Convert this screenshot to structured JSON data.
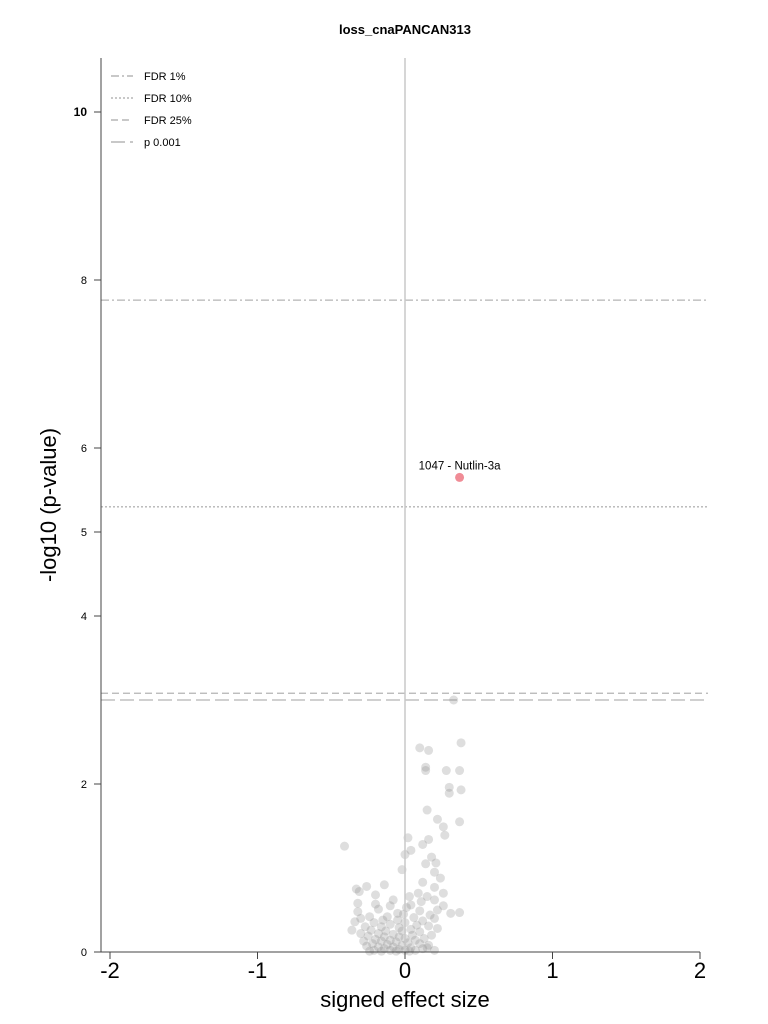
{
  "chart_data": {
    "type": "scatter",
    "title": "loss_cnaPANCAN313",
    "xlabel": "signed effect size",
    "ylabel": "-log10 (p-value)",
    "xlim": [
      -2,
      2
    ],
    "ylim": [
      0,
      10.6
    ],
    "x_ticks": [
      -2,
      -1,
      0,
      1,
      2
    ],
    "y_ticks": [
      0,
      2,
      4,
      5,
      6,
      8,
      10
    ],
    "grid": false,
    "legend_position": "top-left",
    "thresholds": [
      {
        "name": "FDR 1%",
        "y": 7.76,
        "style": "dashdot"
      },
      {
        "name": "FDR 10%",
        "y": 5.3,
        "style": "dotted"
      },
      {
        "name": "FDR 25%",
        "y": 3.08,
        "style": "dashed"
      },
      {
        "name": "p 0.001",
        "y": 3.0,
        "style": "longdash"
      }
    ],
    "highlight": {
      "label": "1047 - Nutlin-3a",
      "x": 0.37,
      "y": 5.65,
      "color": "#f08c96"
    },
    "points_color": "#888888",
    "points": [
      [
        0.33,
        3.0
      ],
      [
        0.38,
        2.49
      ],
      [
        0.1,
        2.43
      ],
      [
        0.16,
        2.4
      ],
      [
        0.14,
        2.2
      ],
      [
        0.14,
        2.16
      ],
      [
        0.28,
        2.16
      ],
      [
        0.37,
        2.16
      ],
      [
        0.3,
        1.96
      ],
      [
        0.3,
        1.89
      ],
      [
        0.38,
        1.93
      ],
      [
        0.15,
        1.69
      ],
      [
        0.22,
        1.58
      ],
      [
        0.37,
        1.55
      ],
      [
        0.26,
        1.49
      ],
      [
        0.27,
        1.39
      ],
      [
        0.02,
        1.36
      ],
      [
        0.16,
        1.34
      ],
      [
        0.12,
        1.28
      ],
      [
        -0.41,
        1.26
      ],
      [
        0.04,
        1.21
      ],
      [
        0.0,
        1.16
      ],
      [
        0.18,
        1.13
      ],
      [
        0.21,
        1.06
      ],
      [
        0.14,
        1.05
      ],
      [
        -0.02,
        0.98
      ],
      [
        0.2,
        0.95
      ],
      [
        0.24,
        0.88
      ],
      [
        0.12,
        0.83
      ],
      [
        -0.14,
        0.8
      ],
      [
        -0.26,
        0.78
      ],
      [
        0.2,
        0.77
      ],
      [
        -0.33,
        0.75
      ],
      [
        -0.31,
        0.72
      ],
      [
        0.09,
        0.7
      ],
      [
        0.26,
        0.7
      ],
      [
        -0.2,
        0.68
      ],
      [
        0.03,
        0.66
      ],
      [
        0.15,
        0.66
      ],
      [
        -0.08,
        0.62
      ],
      [
        0.2,
        0.62
      ],
      [
        0.11,
        0.6
      ],
      [
        -0.32,
        0.58
      ],
      [
        -0.2,
        0.57
      ],
      [
        0.04,
        0.56
      ],
      [
        -0.1,
        0.55
      ],
      [
        0.26,
        0.55
      ],
      [
        0.01,
        0.53
      ],
      [
        -0.18,
        0.51
      ],
      [
        0.22,
        0.5
      ],
      [
        0.1,
        0.49
      ],
      [
        -0.32,
        0.48
      ],
      [
        0.37,
        0.47
      ],
      [
        0.31,
        0.46
      ],
      [
        -0.05,
        0.46
      ],
      [
        -0.01,
        0.45
      ],
      [
        0.17,
        0.44
      ],
      [
        -0.24,
        0.42
      ],
      [
        -0.12,
        0.42
      ],
      [
        0.06,
        0.41
      ],
      [
        -0.3,
        0.4
      ],
      [
        0.2,
        0.4
      ],
      [
        -0.15,
        0.38
      ],
      [
        -0.05,
        0.38
      ],
      [
        0.12,
        0.37
      ],
      [
        -0.34,
        0.36
      ],
      [
        -0.21,
        0.35
      ],
      [
        0.0,
        0.35
      ],
      [
        -0.1,
        0.33
      ],
      [
        0.08,
        0.32
      ],
      [
        0.16,
        0.31
      ],
      [
        -0.27,
        0.3
      ],
      [
        -0.16,
        0.3
      ],
      [
        -0.04,
        0.29
      ],
      [
        0.22,
        0.28
      ],
      [
        0.04,
        0.27
      ],
      [
        -0.36,
        0.26
      ],
      [
        -0.23,
        0.26
      ],
      [
        -0.13,
        0.25
      ],
      [
        -0.02,
        0.25
      ],
      [
        0.1,
        0.24
      ],
      [
        -0.3,
        0.22
      ],
      [
        -0.18,
        0.22
      ],
      [
        -0.08,
        0.21
      ],
      [
        0.05,
        0.2
      ],
      [
        0.18,
        0.2
      ],
      [
        -0.25,
        0.19
      ],
      [
        -0.14,
        0.18
      ],
      [
        -0.04,
        0.18
      ],
      [
        0.0,
        0.16
      ],
      [
        0.13,
        0.16
      ],
      [
        -0.2,
        0.15
      ],
      [
        -0.1,
        0.14
      ],
      [
        0.07,
        0.14
      ],
      [
        -0.28,
        0.13
      ],
      [
        -0.16,
        0.13
      ],
      [
        -0.06,
        0.12
      ],
      [
        0.02,
        0.11
      ],
      [
        0.1,
        0.1
      ],
      [
        -0.22,
        0.1
      ],
      [
        -0.12,
        0.09
      ],
      [
        -0.02,
        0.08
      ],
      [
        0.16,
        0.08
      ],
      [
        -0.26,
        0.07
      ],
      [
        -0.18,
        0.06
      ],
      [
        -0.08,
        0.06
      ],
      [
        0.04,
        0.05
      ],
      [
        0.12,
        0.04
      ],
      [
        -0.14,
        0.04
      ],
      [
        -0.04,
        0.03
      ],
      [
        -0.21,
        0.02
      ],
      [
        -0.1,
        0.02
      ],
      [
        0.0,
        0.02
      ],
      [
        0.07,
        0.02
      ],
      [
        0.2,
        0.02
      ],
      [
        -0.16,
        0.01
      ],
      [
        -0.06,
        0.01
      ],
      [
        0.03,
        0.01
      ],
      [
        -0.24,
        0.01
      ],
      [
        0.15,
        0.05
      ]
    ]
  }
}
